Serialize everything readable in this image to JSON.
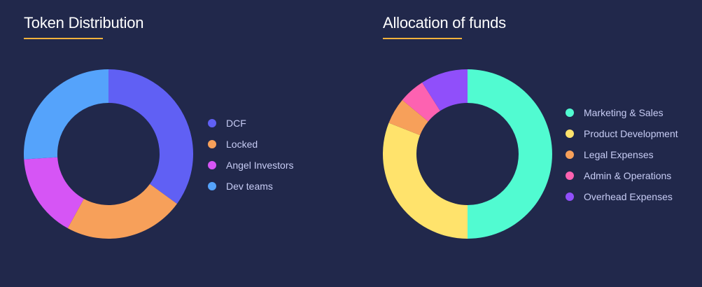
{
  "chart_data": [
    {
      "type": "pie",
      "title": "Token Distribution",
      "categories": [
        "DCF",
        "Locked",
        "Angel Investors",
        "Dev teams"
      ],
      "values": [
        35,
        23,
        16,
        26
      ],
      "colors": [
        "#6060f4",
        "#f7a05a",
        "#d655f5",
        "#55a3fb"
      ],
      "legend": "right",
      "accent": "#f4b23c"
    },
    {
      "type": "pie",
      "title": "Allocation of funds",
      "categories": [
        "Marketing & Sales",
        "Product Development",
        "Legal Expenses",
        "Admin & Operations",
        "Overhead Expenses"
      ],
      "values": [
        50,
        31,
        5,
        5,
        9
      ],
      "colors": [
        "#51fbd1",
        "#ffe36c",
        "#f7a05a",
        "#fd62b1",
        "#904ffa"
      ],
      "legend": "right",
      "accent": "#f4b23c"
    }
  ]
}
